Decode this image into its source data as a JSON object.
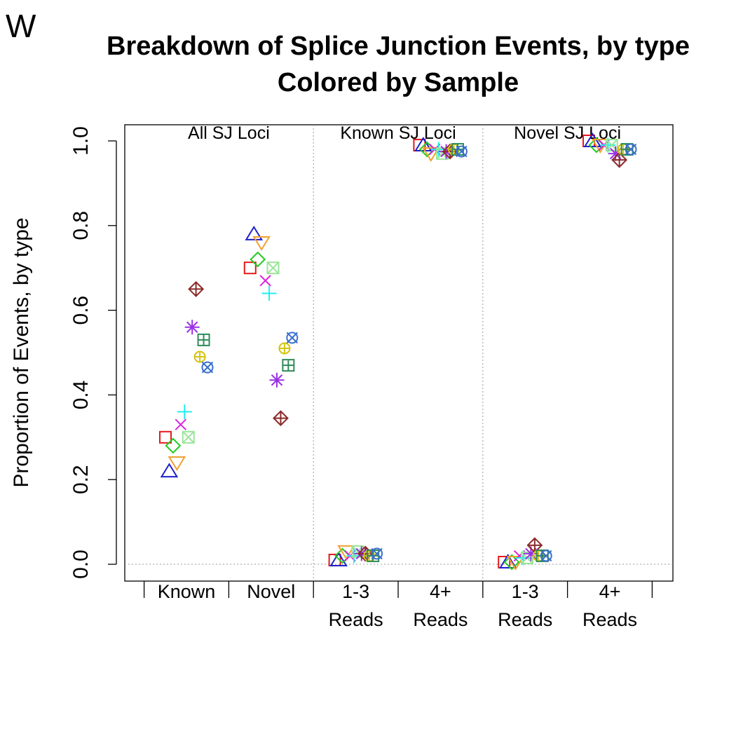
{
  "panel_letter": "W",
  "chart_data": {
    "type": "scatter",
    "title": "Breakdown of Splice Junction Events, by type",
    "subtitle": "Colored by Sample",
    "xlabel": "",
    "ylabel": "Proportion of Events, by type",
    "ylim": [
      0,
      1
    ],
    "yticks": [
      "0.0",
      "0.2",
      "0.4",
      "0.6",
      "0.8",
      "1.0"
    ],
    "grid": false,
    "categories": [
      {
        "line1": "Known",
        "line2": ""
      },
      {
        "line1": "Novel",
        "line2": ""
      },
      {
        "line1": "1-3",
        "line2": "Reads"
      },
      {
        "line1": "4+",
        "line2": "Reads"
      },
      {
        "line1": "1-3",
        "line2": "Reads"
      },
      {
        "line1": "4+",
        "line2": "Reads"
      }
    ],
    "section_labels": [
      "All SJ Loci",
      "Known SJ Loci",
      "Novel SJ Loci"
    ],
    "series": [
      {
        "color": "#e41a1c",
        "marker": "square",
        "values": [
          0.3,
          0.7,
          0.01,
          0.99,
          0.005,
          1.0
        ]
      },
      {
        "color": "#1f1fcc",
        "marker": "triangle-up",
        "values": [
          0.22,
          0.78,
          0.01,
          0.99,
          0.005,
          1.0
        ]
      },
      {
        "color": "#22cc22",
        "marker": "diamond",
        "values": [
          0.28,
          0.72,
          0.02,
          0.98,
          0.005,
          0.99
        ]
      },
      {
        "color": "#f0a030",
        "marker": "triangle-down",
        "values": [
          0.24,
          0.76,
          0.03,
          0.97,
          0.005,
          0.99
        ]
      },
      {
        "color": "#dd22dd",
        "marker": "x",
        "values": [
          0.33,
          0.67,
          0.02,
          0.98,
          0.02,
          0.99
        ]
      },
      {
        "color": "#22eeee",
        "marker": "plus",
        "values": [
          0.36,
          0.64,
          0.02,
          0.98,
          0.015,
          0.99
        ]
      },
      {
        "color": "#99e599",
        "marker": "square-x",
        "values": [
          0.3,
          0.7,
          0.03,
          0.97,
          0.015,
          0.99
        ]
      },
      {
        "color": "#9a30e5",
        "marker": "asterisk",
        "values": [
          0.56,
          0.435,
          0.025,
          0.975,
          0.025,
          0.97
        ]
      },
      {
        "color": "#8b2a2a",
        "marker": "diamond-plus",
        "values": [
          0.65,
          0.345,
          0.025,
          0.975,
          0.045,
          0.955
        ]
      },
      {
        "color": "#d4c40a",
        "marker": "circle-plus",
        "values": [
          0.49,
          0.51,
          0.02,
          0.98,
          0.02,
          0.98
        ]
      },
      {
        "color": "#2e8b57",
        "marker": "square-plus",
        "values": [
          0.53,
          0.47,
          0.02,
          0.98,
          0.02,
          0.98
        ]
      },
      {
        "color": "#3a6fcf",
        "marker": "circle-x",
        "values": [
          0.465,
          0.535,
          0.025,
          0.975,
          0.02,
          0.98
        ]
      }
    ]
  }
}
